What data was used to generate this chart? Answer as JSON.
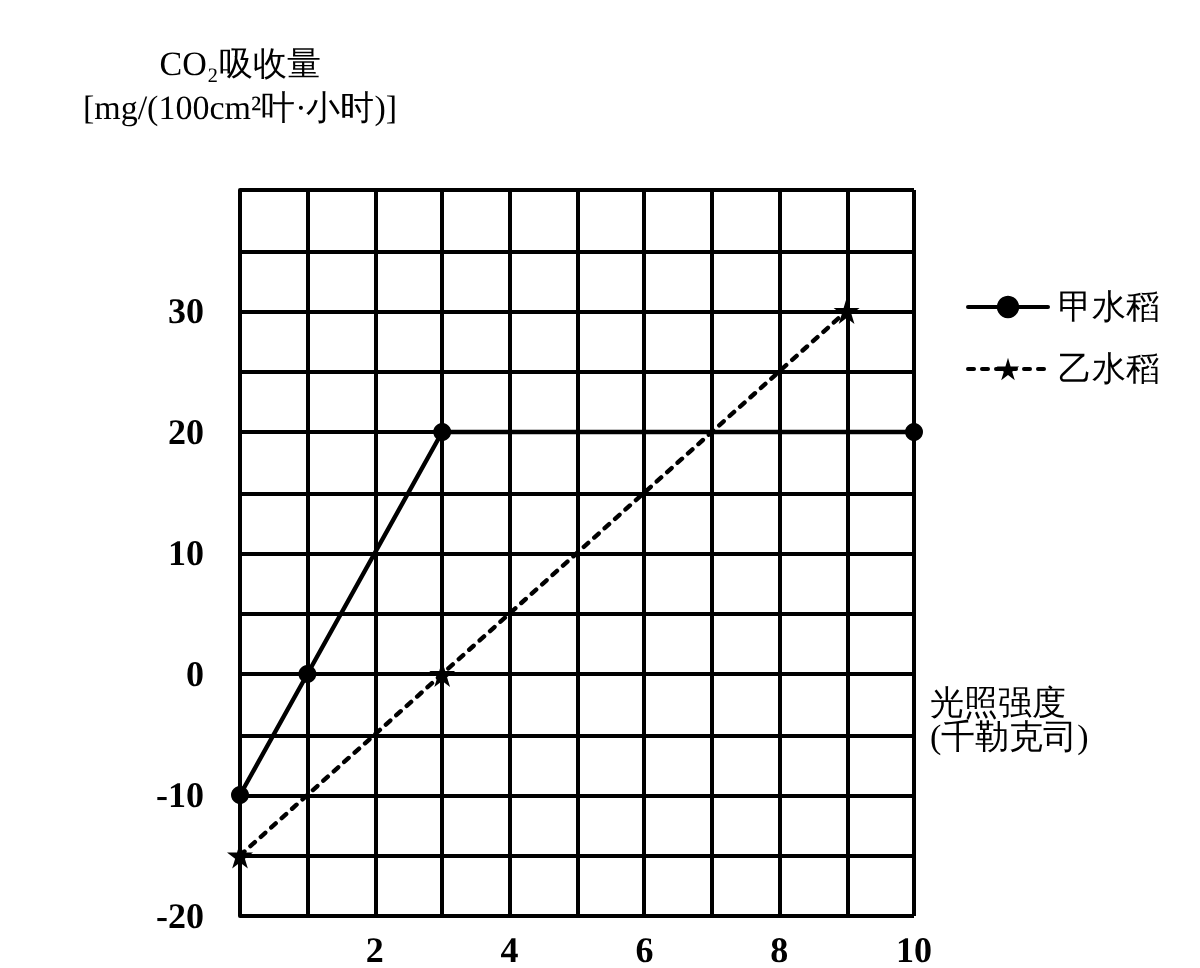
{
  "chart_data": {
    "type": "line",
    "xlabel": "光照强度\n(千勒克司)",
    "ylabel": "CO₂吸收量\n[mg/(100cm²叶·小时)]",
    "xlim": [
      0,
      10
    ],
    "xticks": [
      {
        "value": 0,
        "label": null
      },
      {
        "value": 1,
        "label": null
      },
      2,
      {
        "value": 3,
        "label": null
      },
      4,
      {
        "value": 5,
        "label": null
      },
      6,
      {
        "value": 7,
        "label": null
      },
      8,
      {
        "value": 9,
        "label": null
      },
      10
    ],
    "ylim": [
      -20,
      40
    ],
    "yticks": [
      -20,
      {
        "value": -15,
        "label": null
      },
      -10,
      {
        "value": -5,
        "label": null
      },
      0,
      {
        "value": 5,
        "label": null
      },
      10,
      {
        "value": 15,
        "label": null
      },
      20,
      {
        "value": 25,
        "label": null
      },
      30,
      {
        "value": 35,
        "label": null
      },
      {
        "value": 40,
        "label": null
      }
    ],
    "grid": true,
    "legend": "right",
    "series": [
      {
        "name": "甲水稻",
        "color": "#000000",
        "x": [
          0,
          1,
          3,
          10
        ],
        "values": [
          -10,
          0,
          20,
          20
        ],
        "marker": "circle",
        "line_style": "solid"
      },
      {
        "name": "乙水稻",
        "color": "#000000",
        "x": [
          0,
          3,
          9
        ],
        "values": [
          -15,
          0,
          30
        ],
        "marker": "star",
        "line_style": "dotted"
      }
    ]
  }
}
